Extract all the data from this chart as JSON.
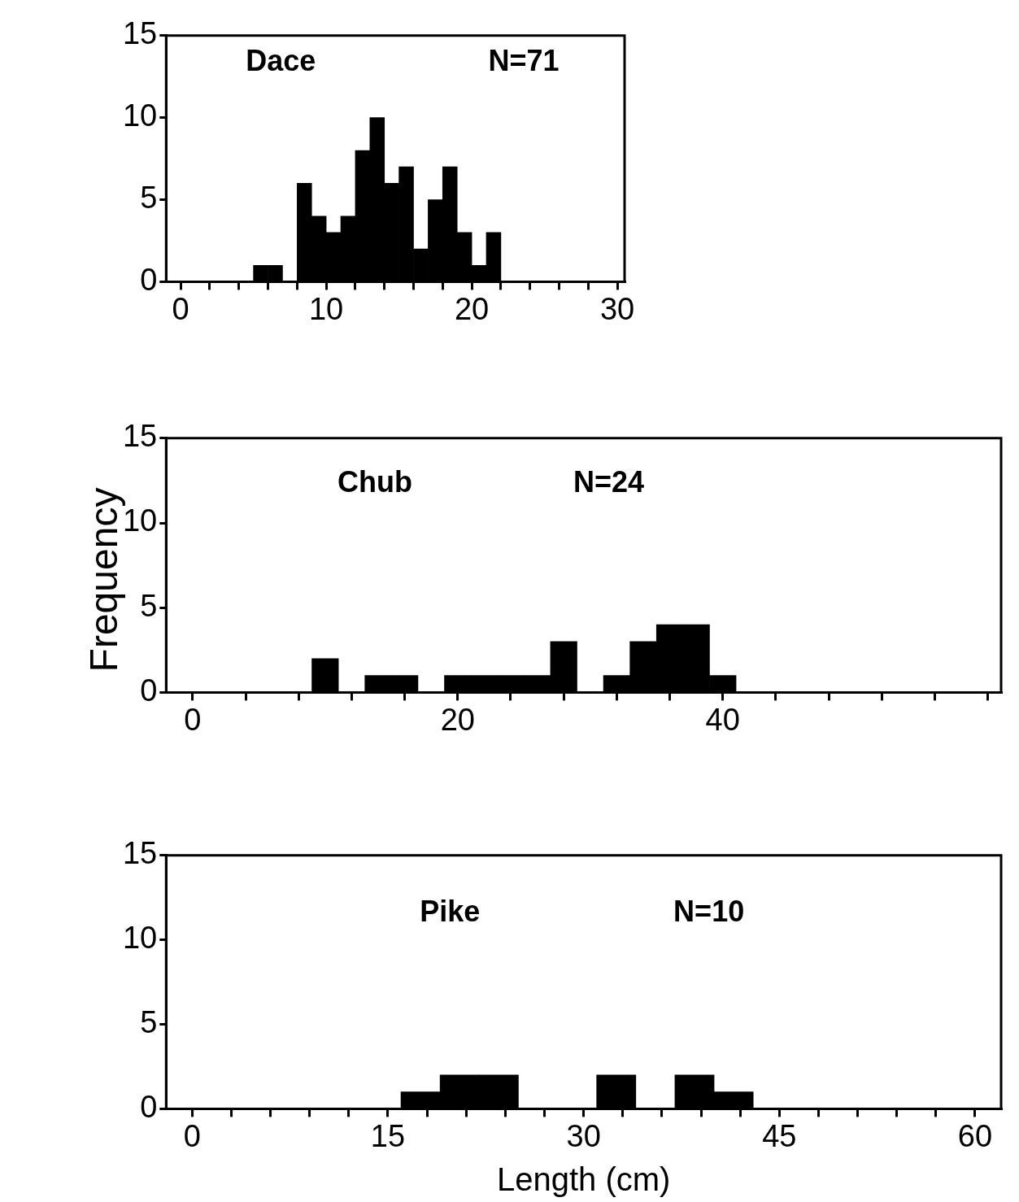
{
  "chart_data": [
    {
      "type": "histogram",
      "annotations": [
        "Dace",
        "N=71"
      ],
      "bins": [
        5,
        6,
        7,
        8,
        9,
        10,
        11,
        12,
        13,
        14,
        15,
        16,
        17,
        18,
        19,
        20,
        21,
        22
      ],
      "values": [
        1,
        1,
        0,
        6,
        4,
        3,
        4,
        8,
        10,
        6,
        7,
        2,
        5,
        7,
        3,
        1,
        3
      ],
      "color": "#000000",
      "xlim": [
        -1,
        30.5
      ],
      "ylim": [
        0,
        15
      ],
      "xticks": [
        0,
        {
          "value": 2,
          "label": null
        },
        {
          "value": 4,
          "label": null
        },
        {
          "value": 6,
          "label": null
        },
        {
          "value": 8,
          "label": null
        },
        10,
        {
          "value": 12,
          "label": null
        },
        {
          "value": 14,
          "label": null
        },
        {
          "value": 16,
          "label": null
        },
        {
          "value": 18,
          "label": null
        },
        20,
        {
          "value": 22,
          "label": null
        },
        {
          "value": 24,
          "label": null
        },
        {
          "value": 26,
          "label": null
        },
        {
          "value": 28,
          "label": null
        },
        30
      ],
      "yticks": [
        0,
        5,
        10,
        15
      ],
      "grid": false
    },
    {
      "type": "histogram",
      "annotations": [
        "Chub",
        "N=24"
      ],
      "ylabel": "Frequency",
      "bins": [
        9,
        11,
        13,
        15,
        17,
        19,
        21,
        23,
        25,
        27,
        29,
        31,
        33,
        35,
        37,
        39,
        41
      ],
      "values": [
        2,
        0,
        1,
        1,
        0,
        1,
        1,
        1,
        1,
        3,
        0,
        1,
        3,
        4,
        4,
        1
      ],
      "color": "#000000",
      "xlim": [
        -2,
        61
      ],
      "ylim": [
        0,
        15
      ],
      "xticks": [
        0,
        {
          "value": 4,
          "label": null
        },
        {
          "value": 8,
          "label": null
        },
        {
          "value": 12,
          "label": null
        },
        {
          "value": 16,
          "label": null
        },
        20,
        {
          "value": 24,
          "label": null
        },
        {
          "value": 28,
          "label": null
        },
        {
          "value": 32,
          "label": null
        },
        {
          "value": 36,
          "label": null
        },
        40,
        {
          "value": 44,
          "label": null
        },
        {
          "value": 48,
          "label": null
        },
        {
          "value": 52,
          "label": null
        },
        {
          "value": 56,
          "label": null
        },
        {
          "value": 60,
          "label": null
        }
      ],
      "yticks": [
        0,
        5,
        10,
        15
      ],
      "grid": false
    },
    {
      "type": "histogram",
      "annotations": [
        "Pike",
        "N=10"
      ],
      "xlabel": "Length (cm)",
      "bins": [
        16,
        19,
        22,
        25,
        28,
        31,
        34,
        37,
        40,
        43
      ],
      "values": [
        1,
        2,
        2,
        0,
        0,
        2,
        0,
        2,
        1
      ],
      "color": "#000000",
      "xlim": [
        -2,
        62
      ],
      "ylim": [
        0,
        15
      ],
      "xticks": [
        0,
        {
          "value": 3,
          "label": null
        },
        {
          "value": 6,
          "label": null
        },
        {
          "value": 9,
          "label": null
        },
        {
          "value": 12,
          "label": null
        },
        15,
        {
          "value": 18,
          "label": null
        },
        {
          "value": 21,
          "label": null
        },
        {
          "value": 24,
          "label": null
        },
        {
          "value": 27,
          "label": null
        },
        30,
        {
          "value": 33,
          "label": null
        },
        {
          "value": 36,
          "label": null
        },
        {
          "value": 39,
          "label": null
        },
        {
          "value": 42,
          "label": null
        },
        45,
        {
          "value": 48,
          "label": null
        },
        {
          "value": 51,
          "label": null
        },
        {
          "value": 54,
          "label": null
        },
        {
          "value": 57,
          "label": null
        },
        60
      ],
      "yticks": [
        0,
        5,
        10,
        15
      ],
      "grid": false
    }
  ]
}
